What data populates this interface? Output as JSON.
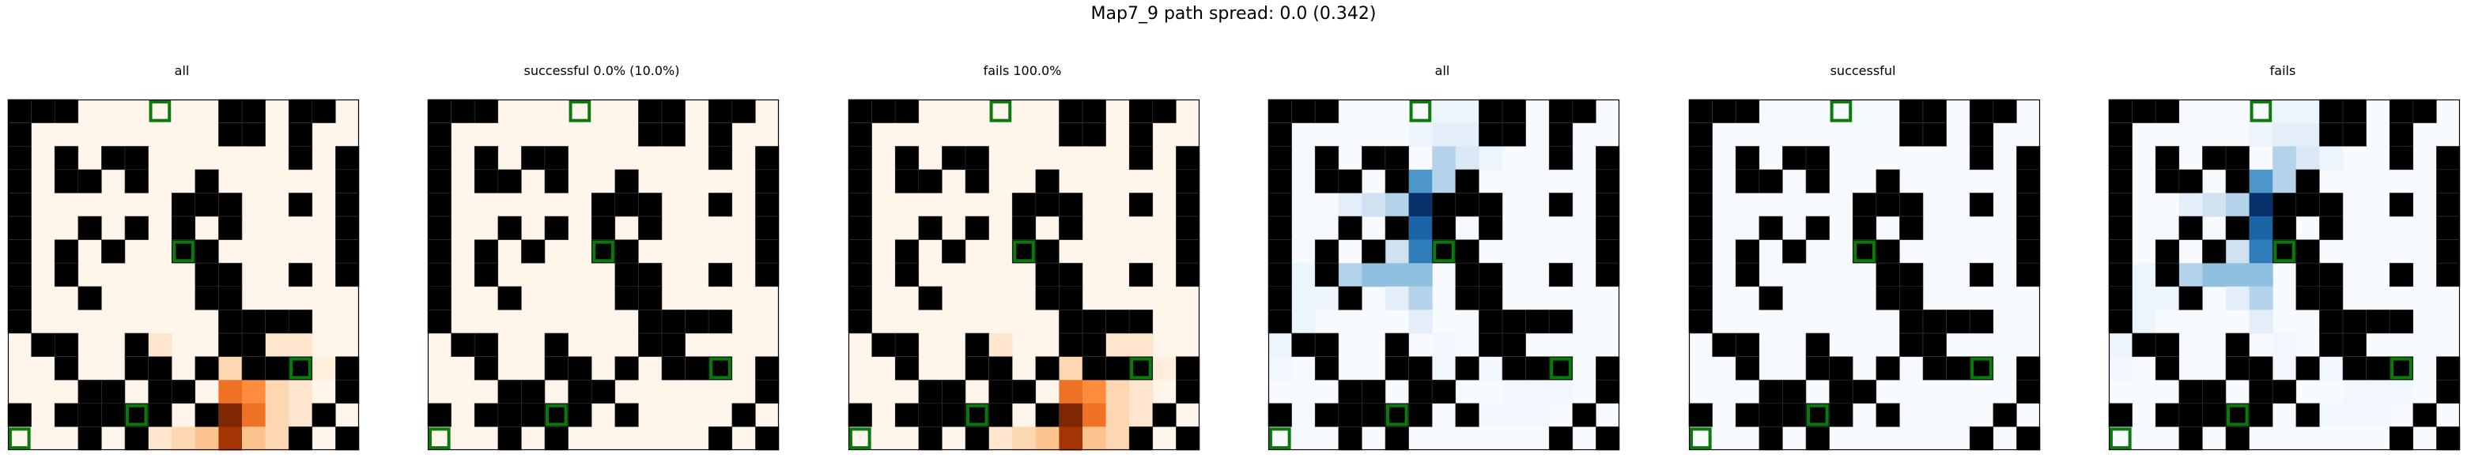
{
  "figure": {
    "title": "Map7_9 path spread: 0.0 (0.342)"
  },
  "chart_data": {
    "type": "heatmap",
    "title": "Map7_9 path spread: 0.0 (0.342)",
    "grid_size": 15,
    "wall_rows": [
      "111000000110110",
      "100000000110100",
      "101011000000101",
      "101101001000001",
      "100000011100101",
      "100101010100001",
      "101010011000001",
      "101000001100101",
      "100100001100000",
      "100000000111100",
      "011001000110000",
      "001001101011101",
      "000110110000001",
      "101111101000010",
      "000101000000101"
    ],
    "goals": [
      [
        0,
        6
      ],
      [
        6,
        7
      ],
      [
        11,
        12
      ],
      [
        13,
        5
      ],
      [
        14,
        0
      ]
    ],
    "walls_color": "#000000",
    "goal_color": "#0a7a0a",
    "panels": [
      {
        "title": "all",
        "cmap": "oranges",
        "max": 10,
        "heat": [
          {
            "r": 10,
            "c": 5,
            "v": 1
          },
          {
            "r": 10,
            "c": 6,
            "v": 1
          },
          {
            "r": 10,
            "c": 11,
            "v": 1
          },
          {
            "r": 10,
            "c": 12,
            "v": 1
          },
          {
            "r": 11,
            "c": 9,
            "v": 2
          },
          {
            "r": 11,
            "c": 11,
            "v": 2
          },
          {
            "r": 11,
            "c": 12,
            "v": 1
          },
          {
            "r": 11,
            "c": 13,
            "v": 0.5
          },
          {
            "r": 12,
            "c": 9,
            "v": 6
          },
          {
            "r": 12,
            "c": 10,
            "v": 5
          },
          {
            "r": 12,
            "c": 11,
            "v": 2
          },
          {
            "r": 12,
            "c": 12,
            "v": 1
          },
          {
            "r": 13,
            "c": 8,
            "v": 1
          },
          {
            "r": 13,
            "c": 9,
            "v": 10
          },
          {
            "r": 13,
            "c": 10,
            "v": 6
          },
          {
            "r": 13,
            "c": 11,
            "v": 2
          },
          {
            "r": 13,
            "c": 12,
            "v": 1
          },
          {
            "r": 14,
            "c": 6,
            "v": 1
          },
          {
            "r": 14,
            "c": 7,
            "v": 2
          },
          {
            "r": 14,
            "c": 8,
            "v": 3
          },
          {
            "r": 14,
            "c": 9,
            "v": 9
          },
          {
            "r": 14,
            "c": 10,
            "v": 3
          },
          {
            "r": 14,
            "c": 11,
            "v": 2
          },
          {
            "r": 14,
            "c": 12,
            "v": 1
          }
        ]
      },
      {
        "title": "successful 0.0% (10.0%)",
        "cmap": "oranges",
        "max": 10,
        "heat": []
      },
      {
        "title": "fails 100.0%",
        "cmap": "oranges",
        "max": 10,
        "heat": [
          {
            "r": 10,
            "c": 5,
            "v": 1
          },
          {
            "r": 10,
            "c": 6,
            "v": 1
          },
          {
            "r": 10,
            "c": 11,
            "v": 1
          },
          {
            "r": 10,
            "c": 12,
            "v": 1
          },
          {
            "r": 11,
            "c": 9,
            "v": 2
          },
          {
            "r": 11,
            "c": 11,
            "v": 2
          },
          {
            "r": 11,
            "c": 12,
            "v": 1
          },
          {
            "r": 11,
            "c": 13,
            "v": 0.5
          },
          {
            "r": 12,
            "c": 9,
            "v": 6
          },
          {
            "r": 12,
            "c": 10,
            "v": 5
          },
          {
            "r": 12,
            "c": 11,
            "v": 2
          },
          {
            "r": 12,
            "c": 12,
            "v": 1
          },
          {
            "r": 13,
            "c": 8,
            "v": 1
          },
          {
            "r": 13,
            "c": 9,
            "v": 10
          },
          {
            "r": 13,
            "c": 10,
            "v": 6
          },
          {
            "r": 13,
            "c": 11,
            "v": 2
          },
          {
            "r": 13,
            "c": 12,
            "v": 1
          },
          {
            "r": 14,
            "c": 6,
            "v": 1
          },
          {
            "r": 14,
            "c": 7,
            "v": 2
          },
          {
            "r": 14,
            "c": 8,
            "v": 3
          },
          {
            "r": 14,
            "c": 9,
            "v": 9
          },
          {
            "r": 14,
            "c": 10,
            "v": 3
          },
          {
            "r": 14,
            "c": 11,
            "v": 2
          },
          {
            "r": 14,
            "c": 12,
            "v": 1
          }
        ]
      },
      {
        "title": "all",
        "cmap": "blues",
        "max": 10,
        "heat": [
          {
            "r": 0,
            "c": 7,
            "v": 0.5
          },
          {
            "r": 0,
            "c": 8,
            "v": 0.5
          },
          {
            "r": 1,
            "c": 6,
            "v": 0.5
          },
          {
            "r": 1,
            "c": 7,
            "v": 1
          },
          {
            "r": 1,
            "c": 8,
            "v": 1
          },
          {
            "r": 2,
            "c": 7,
            "v": 3
          },
          {
            "r": 2,
            "c": 8,
            "v": 1.5
          },
          {
            "r": 2,
            "c": 9,
            "v": 0.5
          },
          {
            "r": 3,
            "c": 6,
            "v": 6
          },
          {
            "r": 3,
            "c": 7,
            "v": 3
          },
          {
            "r": 3,
            "c": 8,
            "v": 1
          },
          {
            "r": 4,
            "c": 3,
            "v": 1
          },
          {
            "r": 4,
            "c": 4,
            "v": 2
          },
          {
            "r": 4,
            "c": 5,
            "v": 3
          },
          {
            "r": 4,
            "c": 6,
            "v": 10
          },
          {
            "r": 5,
            "c": 3,
            "v": 1
          },
          {
            "r": 5,
            "c": 5,
            "v": 3
          },
          {
            "r": 5,
            "c": 6,
            "v": 8
          },
          {
            "r": 6,
            "c": 2,
            "v": 1
          },
          {
            "r": 6,
            "c": 4,
            "v": 2
          },
          {
            "r": 6,
            "c": 5,
            "v": 2
          },
          {
            "r": 6,
            "c": 6,
            "v": 7
          },
          {
            "r": 7,
            "c": 1,
            "v": 0.5
          },
          {
            "r": 7,
            "c": 2,
            "v": 1
          },
          {
            "r": 7,
            "c": 3,
            "v": 3
          },
          {
            "r": 7,
            "c": 4,
            "v": 4
          },
          {
            "r": 7,
            "c": 5,
            "v": 4
          },
          {
            "r": 7,
            "c": 6,
            "v": 4
          },
          {
            "r": 8,
            "c": 1,
            "v": 0.5
          },
          {
            "r": 8,
            "c": 2,
            "v": 0.5
          },
          {
            "r": 8,
            "c": 3,
            "v": 0.5
          },
          {
            "r": 8,
            "c": 5,
            "v": 1
          },
          {
            "r": 8,
            "c": 6,
            "v": 3
          },
          {
            "r": 9,
            "c": 0,
            "v": 0.5
          },
          {
            "r": 9,
            "c": 1,
            "v": 0.5
          },
          {
            "r": 9,
            "c": 6,
            "v": 1
          },
          {
            "r": 10,
            "c": 0,
            "v": 0.5
          },
          {
            "r": 10,
            "c": 1,
            "v": 0.3
          },
          {
            "r": 10,
            "c": 7,
            "v": 0.3
          },
          {
            "r": 11,
            "c": 0,
            "v": 0.3
          },
          {
            "r": 11,
            "c": 7,
            "v": 0.3
          },
          {
            "r": 11,
            "c": 9,
            "v": 0.3
          },
          {
            "r": 12,
            "c": 10,
            "v": 0.3
          },
          {
            "r": 12,
            "c": 11,
            "v": 0.3
          },
          {
            "r": 12,
            "c": 12,
            "v": 0.3
          },
          {
            "r": 13,
            "c": 8,
            "v": 0.3
          },
          {
            "r": 13,
            "c": 9,
            "v": 0.3
          },
          {
            "r": 13,
            "c": 10,
            "v": 0.3
          },
          {
            "r": 13,
            "c": 11,
            "v": 0.3
          }
        ]
      },
      {
        "title": "successful",
        "cmap": "blues",
        "max": 10,
        "heat": []
      },
      {
        "title": "fails",
        "cmap": "blues",
        "max": 10,
        "heat": [
          {
            "r": 0,
            "c": 7,
            "v": 0.5
          },
          {
            "r": 0,
            "c": 8,
            "v": 0.5
          },
          {
            "r": 1,
            "c": 6,
            "v": 0.5
          },
          {
            "r": 1,
            "c": 7,
            "v": 1
          },
          {
            "r": 1,
            "c": 8,
            "v": 1
          },
          {
            "r": 2,
            "c": 7,
            "v": 3
          },
          {
            "r": 2,
            "c": 8,
            "v": 1.5
          },
          {
            "r": 2,
            "c": 9,
            "v": 0.5
          },
          {
            "r": 3,
            "c": 6,
            "v": 6
          },
          {
            "r": 3,
            "c": 7,
            "v": 3
          },
          {
            "r": 3,
            "c": 8,
            "v": 1
          },
          {
            "r": 4,
            "c": 3,
            "v": 1
          },
          {
            "r": 4,
            "c": 4,
            "v": 2
          },
          {
            "r": 4,
            "c": 5,
            "v": 3
          },
          {
            "r": 4,
            "c": 6,
            "v": 10
          },
          {
            "r": 5,
            "c": 3,
            "v": 1
          },
          {
            "r": 5,
            "c": 5,
            "v": 3
          },
          {
            "r": 5,
            "c": 6,
            "v": 8
          },
          {
            "r": 6,
            "c": 2,
            "v": 1
          },
          {
            "r": 6,
            "c": 4,
            "v": 2
          },
          {
            "r": 6,
            "c": 5,
            "v": 2
          },
          {
            "r": 6,
            "c": 6,
            "v": 7
          },
          {
            "r": 7,
            "c": 1,
            "v": 0.5
          },
          {
            "r": 7,
            "c": 2,
            "v": 1
          },
          {
            "r": 7,
            "c": 3,
            "v": 3
          },
          {
            "r": 7,
            "c": 4,
            "v": 4
          },
          {
            "r": 7,
            "c": 5,
            "v": 4
          },
          {
            "r": 7,
            "c": 6,
            "v": 4
          },
          {
            "r": 8,
            "c": 1,
            "v": 0.5
          },
          {
            "r": 8,
            "c": 2,
            "v": 0.5
          },
          {
            "r": 8,
            "c": 3,
            "v": 0.5
          },
          {
            "r": 8,
            "c": 5,
            "v": 1
          },
          {
            "r": 8,
            "c": 6,
            "v": 3
          },
          {
            "r": 9,
            "c": 0,
            "v": 0.5
          },
          {
            "r": 9,
            "c": 1,
            "v": 0.5
          },
          {
            "r": 9,
            "c": 6,
            "v": 1
          },
          {
            "r": 10,
            "c": 0,
            "v": 0.5
          },
          {
            "r": 10,
            "c": 1,
            "v": 0.3
          },
          {
            "r": 10,
            "c": 7,
            "v": 0.3
          },
          {
            "r": 11,
            "c": 0,
            "v": 0.3
          },
          {
            "r": 11,
            "c": 7,
            "v": 0.3
          },
          {
            "r": 11,
            "c": 9,
            "v": 0.3
          },
          {
            "r": 12,
            "c": 10,
            "v": 0.3
          },
          {
            "r": 12,
            "c": 11,
            "v": 0.3
          },
          {
            "r": 12,
            "c": 12,
            "v": 0.3
          },
          {
            "r": 13,
            "c": 8,
            "v": 0.3
          },
          {
            "r": 13,
            "c": 9,
            "v": 0.3
          },
          {
            "r": 13,
            "c": 10,
            "v": 0.3
          },
          {
            "r": 13,
            "c": 11,
            "v": 0.3
          }
        ]
      }
    ]
  }
}
